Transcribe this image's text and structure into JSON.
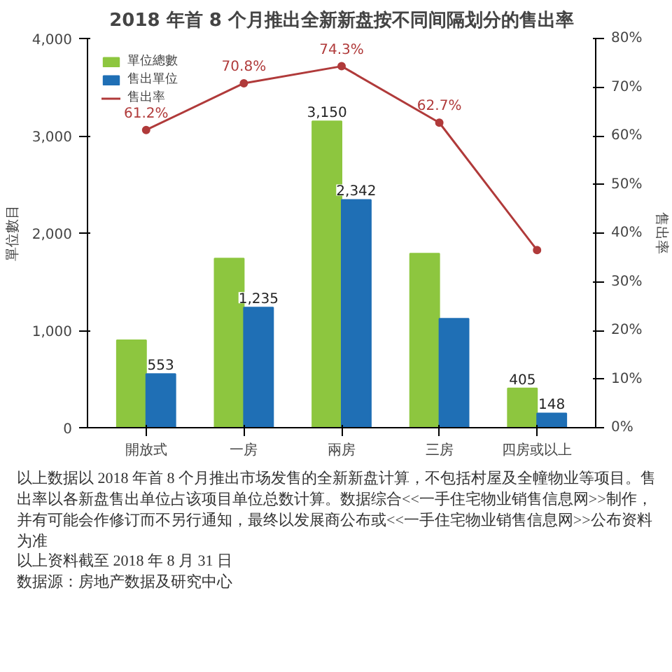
{
  "chart_data": {
    "type": "bar",
    "title": "2018 年首 8 个月推出全新新盘按不同间隔划分的售出率",
    "categories": [
      "開放式",
      "一房",
      "兩房",
      "三房",
      "四房或以上"
    ],
    "series": [
      {
        "name": "單位總數",
        "color": "#8dc63f",
        "values": [
          900,
          1740,
          3150,
          1790,
          405
        ],
        "value_labels": [
          null,
          null,
          "3,150",
          null,
          "405"
        ]
      },
      {
        "name": "售出單位",
        "color": "#1f6fb5",
        "values": [
          553,
          1235,
          2342,
          1120,
          148
        ],
        "value_labels": [
          "553",
          "1,235",
          "2,342",
          null,
          "148"
        ]
      },
      {
        "name": "售出率",
        "type": "line",
        "axis": "y2",
        "color": "#b03a3a",
        "marker": "circle",
        "values": [
          61.2,
          70.8,
          74.3,
          62.7,
          36.5
        ],
        "value_labels": [
          "61.2%",
          "70.8%",
          "74.3%",
          "62.7%",
          null
        ]
      }
    ],
    "ylabel": "單位數目",
    "y2label": "售出率",
    "ylim": [
      0,
      4000
    ],
    "yticks": [
      0,
      {
        "value": 1000,
        "label": "1,000"
      },
      {
        "value": 2000,
        "label": "2,000"
      },
      {
        "value": 3000,
        "label": "3,000"
      },
      {
        "value": 4000,
        "label": "4,000"
      }
    ],
    "y2lim": [
      0,
      80
    ],
    "y2ticks": [
      {
        "value": 0,
        "label": "0%"
      },
      {
        "value": 10,
        "label": "10%"
      },
      {
        "value": 20,
        "label": "20%"
      },
      {
        "value": 30,
        "label": "30%"
      },
      {
        "value": 40,
        "label": "40%"
      },
      {
        "value": 50,
        "label": "50%"
      },
      {
        "value": 60,
        "label": "60%"
      },
      {
        "value": 70,
        "label": "70%"
      },
      {
        "value": 80,
        "label": "80%"
      }
    ],
    "legend": "top left",
    "grid": false,
    "annotations": [
      "以上数据以 2018 年首 8 个月推出市场发售的全新新盘计算，不包括村屋及全幢物业等项目。售出率以各新盘售出单位占该项目单位总数计算。数据综合<<一手住宅物业销售信息网>>制作，并有可能会作修订而不另行通知，最终以发展商公布或<<一手住宅物业销售信息网>>公布资料为准",
      "以上资料截至 2018 年 8 月 31 日",
      "数据源：房地产数据及研究中心"
    ]
  }
}
